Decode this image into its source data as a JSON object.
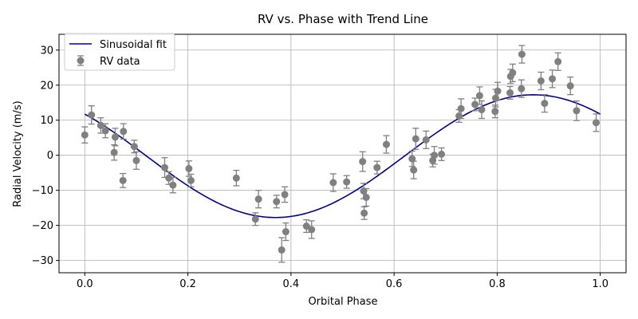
{
  "chart_data": {
    "type": "scatter",
    "title": "RV vs. Phase with Trend Line",
    "xlabel": "Orbital Phase",
    "ylabel": "Radial Velocity (m/s)",
    "xlim": [
      -0.05,
      1.05
    ],
    "ylim": [
      -33.5,
      34.5
    ],
    "xticks": [
      0.0,
      0.2,
      0.4,
      0.6,
      0.8,
      1.0
    ],
    "xtick_labels": [
      "0.0",
      "0.2",
      "0.4",
      "0.6",
      "0.8",
      "1.0"
    ],
    "yticks": [
      -30,
      -20,
      -10,
      0,
      10,
      20,
      30
    ],
    "ytick_labels": [
      "−30",
      "−20",
      "−10",
      "0",
      "10",
      "20",
      "30"
    ],
    "grid": true,
    "legend_position": "top-left",
    "colors": {
      "fit": "#00008b",
      "data": "#808080"
    },
    "series": [
      {
        "name": "Sinusoidal fit",
        "type": "line",
        "model": {
          "offset": -0.25,
          "amplitude": 17.5,
          "phase0": 0.12
        }
      },
      {
        "name": "RV data",
        "type": "errorbar",
        "points": [
          {
            "x": 0.0,
            "y": 5.8,
            "err": 2.3
          },
          {
            "x": 0.013,
            "y": 11.5,
            "err": 2.6
          },
          {
            "x": 0.031,
            "y": 8.5,
            "err": 2.2
          },
          {
            "x": 0.04,
            "y": 7.0,
            "err": 2.0
          },
          {
            "x": 0.057,
            "y": 0.8,
            "err": 2.2
          },
          {
            "x": 0.059,
            "y": 5.2,
            "err": 2.5
          },
          {
            "x": 0.074,
            "y": -7.2,
            "err": 2.0
          },
          {
            "x": 0.075,
            "y": 6.8,
            "err": 2.2
          },
          {
            "x": 0.096,
            "y": 2.5,
            "err": 1.8
          },
          {
            "x": 0.1,
            "y": -1.5,
            "err": 2.5
          },
          {
            "x": 0.155,
            "y": -3.5,
            "err": 2.8
          },
          {
            "x": 0.163,
            "y": -6.5,
            "err": 1.8
          },
          {
            "x": 0.171,
            "y": -8.5,
            "err": 2.2
          },
          {
            "x": 0.202,
            "y": -3.8,
            "err": 2.2
          },
          {
            "x": 0.206,
            "y": -7.2,
            "err": 1.8
          },
          {
            "x": 0.294,
            "y": -6.5,
            "err": 2.2
          },
          {
            "x": 0.331,
            "y": -18.2,
            "err": 1.8
          },
          {
            "x": 0.337,
            "y": -12.5,
            "err": 2.5
          },
          {
            "x": 0.372,
            "y": -13.2,
            "err": 1.8
          },
          {
            "x": 0.382,
            "y": -27.0,
            "err": 3.5
          },
          {
            "x": 0.388,
            "y": -11.2,
            "err": 2.2
          },
          {
            "x": 0.39,
            "y": -21.8,
            "err": 2.5
          },
          {
            "x": 0.43,
            "y": -20.2,
            "err": 1.8
          },
          {
            "x": 0.44,
            "y": -21.2,
            "err": 2.5
          },
          {
            "x": 0.482,
            "y": -7.8,
            "err": 2.5
          },
          {
            "x": 0.508,
            "y": -7.6,
            "err": 1.8
          },
          {
            "x": 0.539,
            "y": -1.8,
            "err": 2.8
          },
          {
            "x": 0.541,
            "y": -10.2,
            "err": 2.2
          },
          {
            "x": 0.542,
            "y": -16.5,
            "err": 1.8
          },
          {
            "x": 0.546,
            "y": -12.0,
            "err": 2.5
          },
          {
            "x": 0.567,
            "y": -3.5,
            "err": 1.8
          },
          {
            "x": 0.585,
            "y": 3.1,
            "err": 2.5
          },
          {
            "x": 0.635,
            "y": -1.0,
            "err": 2.2
          },
          {
            "x": 0.638,
            "y": -4.2,
            "err": 2.5
          },
          {
            "x": 0.642,
            "y": 4.7,
            "err": 3.0
          },
          {
            "x": 0.662,
            "y": 4.4,
            "err": 2.5
          },
          {
            "x": 0.675,
            "y": -1.5,
            "err": 1.8
          },
          {
            "x": 0.678,
            "y": 0.0,
            "err": 2.5
          },
          {
            "x": 0.692,
            "y": 0.3,
            "err": 1.8
          },
          {
            "x": 0.726,
            "y": 11.2,
            "err": 1.8
          },
          {
            "x": 0.73,
            "y": 13.3,
            "err": 2.8
          },
          {
            "x": 0.757,
            "y": 14.5,
            "err": 1.8
          },
          {
            "x": 0.766,
            "y": 17.0,
            "err": 2.5
          },
          {
            "x": 0.77,
            "y": 13.0,
            "err": 2.5
          },
          {
            "x": 0.796,
            "y": 12.5,
            "err": 1.8
          },
          {
            "x": 0.797,
            "y": 16.3,
            "err": 2.5
          },
          {
            "x": 0.801,
            "y": 18.3,
            "err": 2.5
          },
          {
            "x": 0.825,
            "y": 17.8,
            "err": 1.8
          },
          {
            "x": 0.826,
            "y": 22.5,
            "err": 2.0
          },
          {
            "x": 0.83,
            "y": 23.5,
            "err": 2.5
          },
          {
            "x": 0.847,
            "y": 19.0,
            "err": 2.5
          },
          {
            "x": 0.848,
            "y": 28.8,
            "err": 2.5
          },
          {
            "x": 0.885,
            "y": 21.2,
            "err": 2.5
          },
          {
            "x": 0.892,
            "y": 14.8,
            "err": 2.5
          },
          {
            "x": 0.907,
            "y": 21.8,
            "err": 2.5
          },
          {
            "x": 0.918,
            "y": 26.7,
            "err": 2.5
          },
          {
            "x": 0.942,
            "y": 19.8,
            "err": 2.5
          },
          {
            "x": 0.954,
            "y": 12.7,
            "err": 2.8
          },
          {
            "x": 0.992,
            "y": 9.3,
            "err": 2.5
          }
        ]
      }
    ]
  }
}
